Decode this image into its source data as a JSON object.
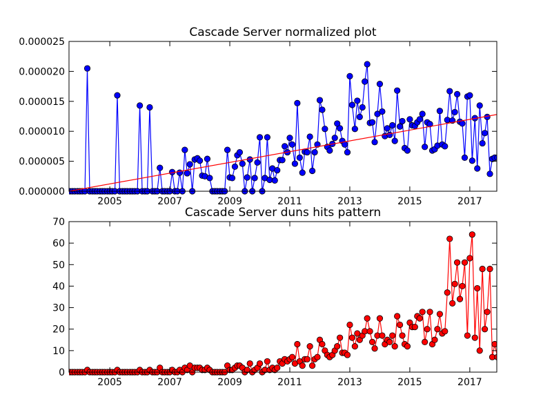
{
  "chart_data": [
    {
      "type": "line",
      "title": "Cascade Server normalized plot",
      "xlim": [
        2003.64,
        2017.9
      ],
      "xticks": [
        2005,
        2007,
        2009,
        2011,
        2013,
        2015,
        2017
      ],
      "ylim": [
        0,
        2.5e-05
      ],
      "yticks": [
        {
          "value": 0,
          "label": "0.000000"
        },
        {
          "value": 5e-06,
          "label": "0.000005"
        },
        {
          "value": 1e-05,
          "label": "0.000010"
        },
        {
          "value": 1.5e-05,
          "label": "0.000015"
        },
        {
          "value": 2e-05,
          "label": "0.000020"
        },
        {
          "value": 2.5e-05,
          "label": "0.000025"
        }
      ],
      "x": [
        2003.67,
        2003.75,
        2003.83,
        2003.92,
        2004,
        2004.08,
        2004.17,
        2004.25,
        2004.33,
        2004.42,
        2004.5,
        2004.58,
        2004.67,
        2004.75,
        2004.83,
        2004.92,
        2005,
        2005.08,
        2005.17,
        2005.25,
        2005.33,
        2005.42,
        2005.5,
        2005.58,
        2005.67,
        2005.75,
        2005.83,
        2005.92,
        2006,
        2006.08,
        2006.17,
        2006.25,
        2006.33,
        2006.42,
        2006.5,
        2006.58,
        2006.67,
        2006.75,
        2006.83,
        2006.92,
        2007,
        2007.08,
        2007.17,
        2007.25,
        2007.33,
        2007.42,
        2007.5,
        2007.58,
        2007.67,
        2007.75,
        2007.83,
        2007.92,
        2008,
        2008.08,
        2008.17,
        2008.25,
        2008.33,
        2008.42,
        2008.5,
        2008.58,
        2008.67,
        2008.75,
        2008.83,
        2008.92,
        2009,
        2009.08,
        2009.17,
        2009.25,
        2009.33,
        2009.42,
        2009.5,
        2009.58,
        2009.67,
        2009.75,
        2009.83,
        2009.92,
        2010,
        2010.08,
        2010.17,
        2010.25,
        2010.33,
        2010.42,
        2010.5,
        2010.58,
        2010.67,
        2010.75,
        2010.83,
        2010.92,
        2011,
        2011.08,
        2011.17,
        2011.25,
        2011.33,
        2011.42,
        2011.5,
        2011.58,
        2011.67,
        2011.75,
        2011.83,
        2011.92,
        2012,
        2012.08,
        2012.17,
        2012.25,
        2012.33,
        2012.42,
        2012.5,
        2012.58,
        2012.67,
        2012.75,
        2012.83,
        2012.92,
        2013,
        2013.08,
        2013.17,
        2013.25,
        2013.33,
        2013.42,
        2013.5,
        2013.58,
        2013.67,
        2013.75,
        2013.83,
        2013.92,
        2014,
        2014.08,
        2014.17,
        2014.25,
        2014.33,
        2014.42,
        2014.5,
        2014.58,
        2014.67,
        2014.75,
        2014.83,
        2014.92,
        2015,
        2015.08,
        2015.17,
        2015.25,
        2015.33,
        2015.42,
        2015.5,
        2015.58,
        2015.67,
        2015.75,
        2015.83,
        2015.92,
        2016,
        2016.08,
        2016.17,
        2016.25,
        2016.33,
        2016.42,
        2016.5,
        2016.58,
        2016.67,
        2016.75,
        2016.83,
        2016.92,
        2017,
        2017.08,
        2017.17,
        2017.25,
        2017.33,
        2017.42,
        2017.5,
        2017.58,
        2017.67,
        2017.75,
        2017.83,
        2017.92
      ],
      "series": [
        {
          "color": "#0000ff",
          "marker": true,
          "values": [
            0,
            0,
            0,
            0,
            0,
            0,
            0,
            2.05e-05,
            0,
            0,
            0,
            0,
            0,
            0,
            0,
            0,
            0,
            0,
            0,
            1.6e-05,
            0,
            0,
            0,
            0,
            0,
            0,
            0,
            0,
            1.43e-05,
            0,
            0,
            0,
            1.4e-05,
            0,
            0,
            0,
            3.9e-06,
            0,
            0,
            0,
            0,
            3.2e-06,
            0,
            0,
            3.1e-06,
            0,
            6.9e-06,
            3e-06,
            4.5e-06,
            0,
            5.3e-06,
            5.5e-06,
            5.1e-06,
            2.6e-06,
            2.5e-06,
            5.4e-06,
            2.2e-06,
            0,
            0,
            0,
            0,
            0,
            0,
            6.9e-06,
            2.3e-06,
            2.2e-06,
            4.1e-06,
            6e-06,
            6.5e-06,
            4.6e-06,
            0,
            2.3e-06,
            5.3e-06,
            0,
            2.2e-06,
            4.8e-06,
            9e-06,
            0,
            2.2e-06,
            9e-06,
            1.9e-06,
            3.8e-06,
            1.8e-06,
            3.5e-06,
            5.2e-06,
            5.2e-06,
            7.5e-06,
            6.5e-06,
            8.9e-06,
            7.8e-06,
            4.6e-06,
            1.47e-05,
            5.6e-06,
            3.1e-06,
            6.6e-06,
            6.5e-06,
            9.1e-06,
            3.4e-06,
            6.5e-06,
            7.8e-06,
            1.52e-05,
            1.36e-05,
            1.04e-05,
            7.4e-06,
            6.8e-06,
            7.9e-06,
            8.9e-06,
            1.13e-05,
            1.05e-05,
            8.4e-06,
            7.8e-06,
            6.5e-06,
            1.92e-05,
            1.44e-05,
            1.04e-05,
            1.51e-05,
            1.24e-05,
            1.4e-05,
            1.83e-05,
            2.12e-05,
            1.14e-05,
            1.15e-05,
            8.2e-06,
            1.29e-05,
            1.79e-05,
            1.33e-05,
            9.2e-06,
            1.05e-05,
            9.4e-06,
            1.1e-05,
            8.4e-06,
            1.68e-05,
            1.08e-05,
            1.17e-05,
            7.2e-06,
            6.8e-06,
            1.2e-05,
            1.1e-05,
            1.09e-05,
            1.15e-05,
            1.2e-05,
            1.29e-05,
            7.4e-06,
            1.15e-05,
            1.12e-05,
            6.8e-06,
            7e-06,
            7.6e-06,
            1.34e-05,
            7.8e-06,
            7.5e-06,
            1.19e-05,
            1.67e-05,
            1.18e-05,
            1.32e-05,
            1.62e-05,
            1.16e-05,
            1.13e-05,
            5.6e-06,
            1.58e-05,
            1.6e-05,
            5.1e-06,
            1.22e-05,
            3.8e-06,
            1.43e-05,
            8e-06,
            9.7e-06,
            1.24e-05,
            2.9e-06,
            5.4e-06,
            5.6e-06,
            5.6e-06
          ]
        },
        {
          "color": "#ff0000",
          "marker": false,
          "x": [
            2003.64,
            2017.9
          ],
          "values": [
            0,
            1.28e-05
          ]
        }
      ]
    },
    {
      "type": "line",
      "title": "Cascade Server duns hits pattern",
      "xlim": [
        2003.64,
        2017.9
      ],
      "xticks": [
        2005,
        2007,
        2009,
        2011,
        2013,
        2015,
        2017
      ],
      "ylim": [
        0,
        70
      ],
      "yticks": [
        0,
        10,
        20,
        30,
        40,
        50,
        60,
        70
      ],
      "x": [
        2003.67,
        2003.75,
        2003.83,
        2003.92,
        2004,
        2004.08,
        2004.17,
        2004.25,
        2004.33,
        2004.42,
        2004.5,
        2004.58,
        2004.67,
        2004.75,
        2004.83,
        2004.92,
        2005,
        2005.08,
        2005.17,
        2005.25,
        2005.33,
        2005.42,
        2005.5,
        2005.58,
        2005.67,
        2005.75,
        2005.83,
        2005.92,
        2006,
        2006.08,
        2006.17,
        2006.25,
        2006.33,
        2006.42,
        2006.5,
        2006.58,
        2006.67,
        2006.75,
        2006.83,
        2006.92,
        2007,
        2007.08,
        2007.17,
        2007.25,
        2007.33,
        2007.42,
        2007.5,
        2007.58,
        2007.67,
        2007.75,
        2007.83,
        2007.92,
        2008,
        2008.08,
        2008.17,
        2008.25,
        2008.33,
        2008.42,
        2008.5,
        2008.58,
        2008.67,
        2008.75,
        2008.83,
        2008.92,
        2009,
        2009.08,
        2009.17,
        2009.25,
        2009.33,
        2009.42,
        2009.5,
        2009.58,
        2009.67,
        2009.75,
        2009.83,
        2009.92,
        2010,
        2010.08,
        2010.17,
        2010.25,
        2010.33,
        2010.42,
        2010.5,
        2010.58,
        2010.67,
        2010.75,
        2010.83,
        2010.92,
        2011,
        2011.08,
        2011.17,
        2011.25,
        2011.33,
        2011.42,
        2011.5,
        2011.58,
        2011.67,
        2011.75,
        2011.83,
        2011.92,
        2012,
        2012.08,
        2012.17,
        2012.25,
        2012.33,
        2012.42,
        2012.5,
        2012.58,
        2012.67,
        2012.75,
        2012.83,
        2012.92,
        2013,
        2013.08,
        2013.17,
        2013.25,
        2013.33,
        2013.42,
        2013.5,
        2013.58,
        2013.67,
        2013.75,
        2013.83,
        2013.92,
        2014,
        2014.08,
        2014.17,
        2014.25,
        2014.33,
        2014.42,
        2014.5,
        2014.58,
        2014.67,
        2014.75,
        2014.83,
        2014.92,
        2015,
        2015.08,
        2015.17,
        2015.25,
        2015.33,
        2015.42,
        2015.5,
        2015.58,
        2015.67,
        2015.75,
        2015.83,
        2015.92,
        2016,
        2016.08,
        2016.17,
        2016.25,
        2016.33,
        2016.42,
        2016.5,
        2016.58,
        2016.67,
        2016.75,
        2016.83,
        2016.92,
        2017,
        2017.08,
        2017.17,
        2017.25,
        2017.33,
        2017.42,
        2017.5,
        2017.58,
        2017.67,
        2017.75,
        2017.83,
        2017.92
      ],
      "series": [
        {
          "color": "#ff0000",
          "marker": true,
          "values": [
            0,
            0,
            0,
            0,
            0,
            0,
            0,
            1,
            0,
            0,
            0,
            0,
            0,
            0,
            0,
            0,
            0,
            0,
            0,
            1,
            0,
            0,
            0,
            0,
            0,
            0,
            0,
            0,
            1,
            0,
            0,
            0,
            1,
            0,
            0,
            0,
            2,
            0,
            0,
            0,
            0,
            1,
            0,
            0,
            1,
            0,
            2,
            1,
            3,
            0,
            2,
            2,
            2,
            1,
            1,
            2,
            1,
            0,
            0,
            0,
            0,
            0,
            0,
            3,
            1,
            1,
            2,
            3,
            3,
            2,
            0,
            1,
            4,
            0,
            1,
            2,
            4,
            0,
            1,
            5,
            1,
            2,
            1,
            2,
            5,
            4,
            6,
            5,
            6,
            7,
            4,
            13,
            5,
            3,
            6,
            6,
            12,
            3,
            6,
            7,
            15,
            13,
            10,
            8,
            7,
            8,
            10,
            12,
            16,
            9,
            9,
            8,
            22,
            16,
            12,
            18,
            15,
            17,
            19,
            25,
            19,
            14,
            11,
            17,
            25,
            17,
            13,
            15,
            14,
            17,
            12,
            26,
            22,
            17,
            13,
            12,
            23,
            21,
            21,
            26,
            25,
            28,
            14,
            20,
            28,
            13,
            15,
            20,
            27,
            18,
            19,
            37,
            62,
            32,
            41,
            51,
            34,
            40,
            51,
            17,
            53,
            64,
            16,
            39,
            10,
            48,
            20,
            28,
            48,
            7,
            13,
            7
          ]
        }
      ]
    }
  ]
}
